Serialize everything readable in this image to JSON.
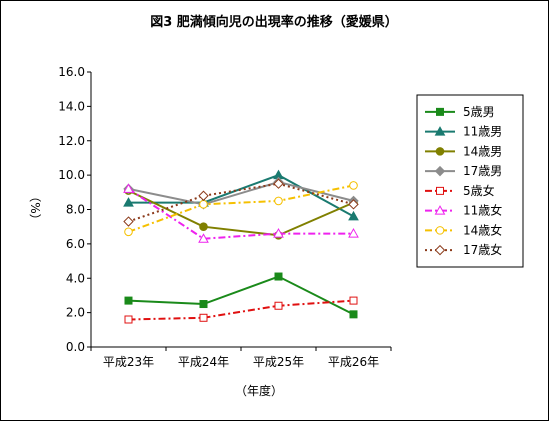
{
  "chart_data": {
    "type": "line",
    "title": "図3  肥満傾向児の出現率の推移（愛媛県）",
    "xlabel": "（年度）",
    "ylabel": "（%）",
    "categories": [
      "平成23年",
      "平成24年",
      "平成25年",
      "平成26年"
    ],
    "ylim": [
      0,
      16
    ],
    "yticks": [
      "0.0",
      "2.0",
      "4.0",
      "6.0",
      "8.0",
      "10.0",
      "12.0",
      "14.0",
      "16.0"
    ],
    "grid": false,
    "legend_position": "right",
    "series": [
      {
        "name": "5歳男",
        "values": [
          2.7,
          2.5,
          4.1,
          1.9
        ],
        "color": "#1a8a1a",
        "marker": "square-filled",
        "dash": "solid"
      },
      {
        "name": "11歳男",
        "values": [
          8.4,
          8.4,
          10.0,
          7.6
        ],
        "color": "#1a7a70",
        "marker": "triangle-filled",
        "dash": "solid"
      },
      {
        "name": "14歳男",
        "values": [
          9.1,
          7.0,
          6.5,
          8.4
        ],
        "color": "#808000",
        "marker": "circle-filled",
        "dash": "solid"
      },
      {
        "name": "17歳男",
        "values": [
          9.2,
          8.3,
          9.6,
          8.5
        ],
        "color": "#8c8c8c",
        "marker": "diamond-filled",
        "dash": "solid"
      },
      {
        "name": "5歳女",
        "values": [
          1.6,
          1.7,
          2.4,
          2.7
        ],
        "color": "#e01010",
        "marker": "square-open",
        "dash": "dashdot"
      },
      {
        "name": "11歳女",
        "values": [
          9.2,
          6.3,
          6.6,
          6.6
        ],
        "color": "#ee22ee",
        "marker": "triangle-open",
        "dash": "dashdot"
      },
      {
        "name": "14歳女",
        "values": [
          6.7,
          8.3,
          8.5,
          9.4
        ],
        "color": "#f5c000",
        "marker": "circle-open",
        "dash": "dashdot"
      },
      {
        "name": "17歳女",
        "values": [
          7.3,
          8.8,
          9.5,
          8.3
        ],
        "color": "#8b3a1a",
        "marker": "diamond-open",
        "dash": "dotted"
      }
    ]
  }
}
